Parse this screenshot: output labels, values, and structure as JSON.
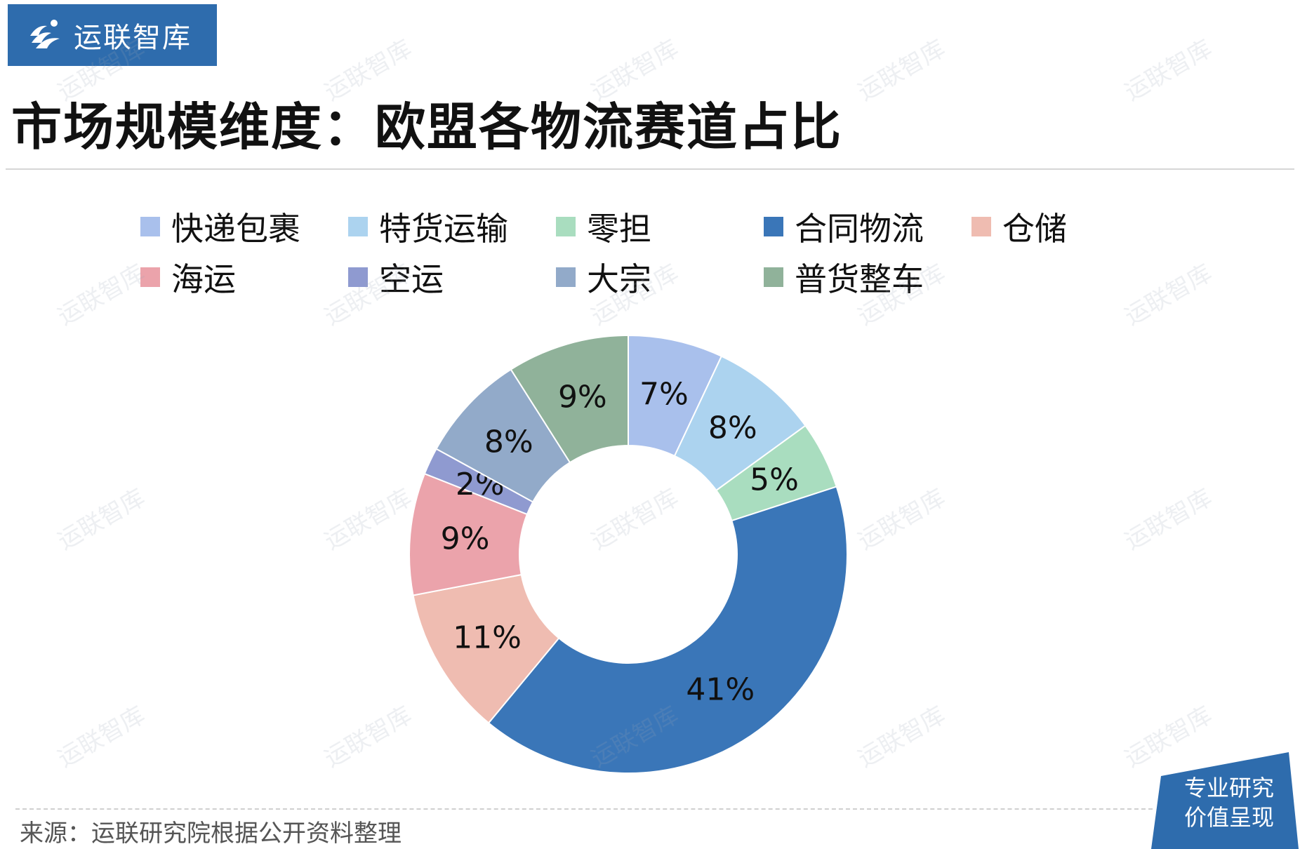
{
  "brand": {
    "name": "运联智库"
  },
  "title": "市场规模维度：欧盟各物流赛道占比",
  "source": "来源：运联研究院根据公开资料整理",
  "badge": {
    "line1": "专业研究",
    "line2": "价值呈现"
  },
  "chart_data": {
    "type": "pie",
    "donut": true,
    "legend_position": "top",
    "categories": [
      "快递包裹",
      "特货运输",
      "零担",
      "合同物流",
      "仓储",
      "海运",
      "空运",
      "大宗",
      "普货整车"
    ],
    "values": [
      7,
      8,
      5,
      41,
      11,
      9,
      2,
      8,
      9
    ],
    "labels": [
      "7%",
      "8%",
      "5%",
      "41%",
      "11%",
      "9%",
      "2%",
      "8%",
      "9%"
    ],
    "colors": [
      "#a9c0ec",
      "#acd3ef",
      "#a9ddbf",
      "#3a76b8",
      "#efbcb1",
      "#eba3ab",
      "#8f9ad0",
      "#92aac9",
      "#90b29a"
    ],
    "unit": "%"
  }
}
